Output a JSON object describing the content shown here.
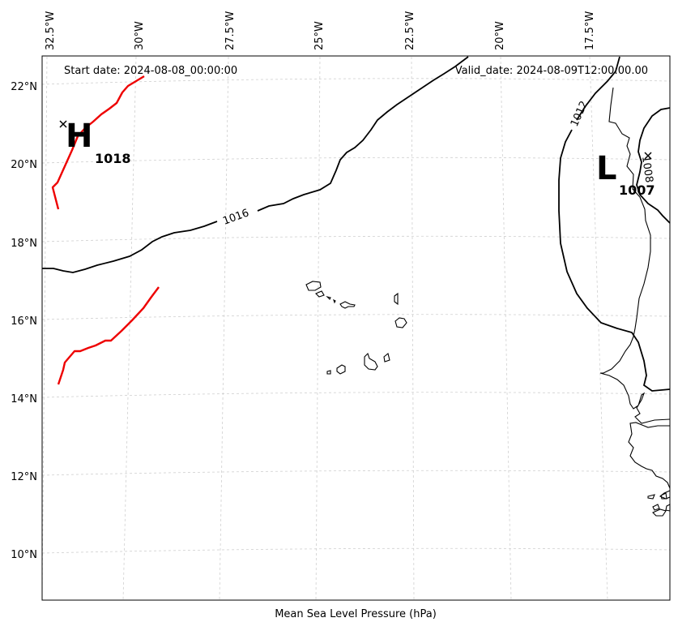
{
  "header": {
    "start_date": "Start date: 2024-08-08_00:00:00",
    "valid_date": "Valid_date: 2024-08-09T12:00:00.00"
  },
  "footer": {
    "xlabel": "Mean Sea Level Pressure (hPa)"
  },
  "axes": {
    "lon_ticks": [
      "32.5°W",
      "30°W",
      "27.5°W",
      "25°W",
      "22.5°W",
      "20°W",
      "17.5°W"
    ],
    "lat_ticks": [
      "22°N",
      "20°N",
      "18°N",
      "16°N",
      "14°N",
      "12°N",
      "10°N"
    ]
  },
  "pressure_centers": [
    {
      "type": "H",
      "value": "1018"
    },
    {
      "type": "L",
      "value": "1007"
    }
  ],
  "isobar_labels": [
    "1016",
    "1012",
    "1008"
  ],
  "colors": {
    "front": "#ee0000",
    "isobar": "#000000",
    "grid": "#cfcfcf"
  }
}
